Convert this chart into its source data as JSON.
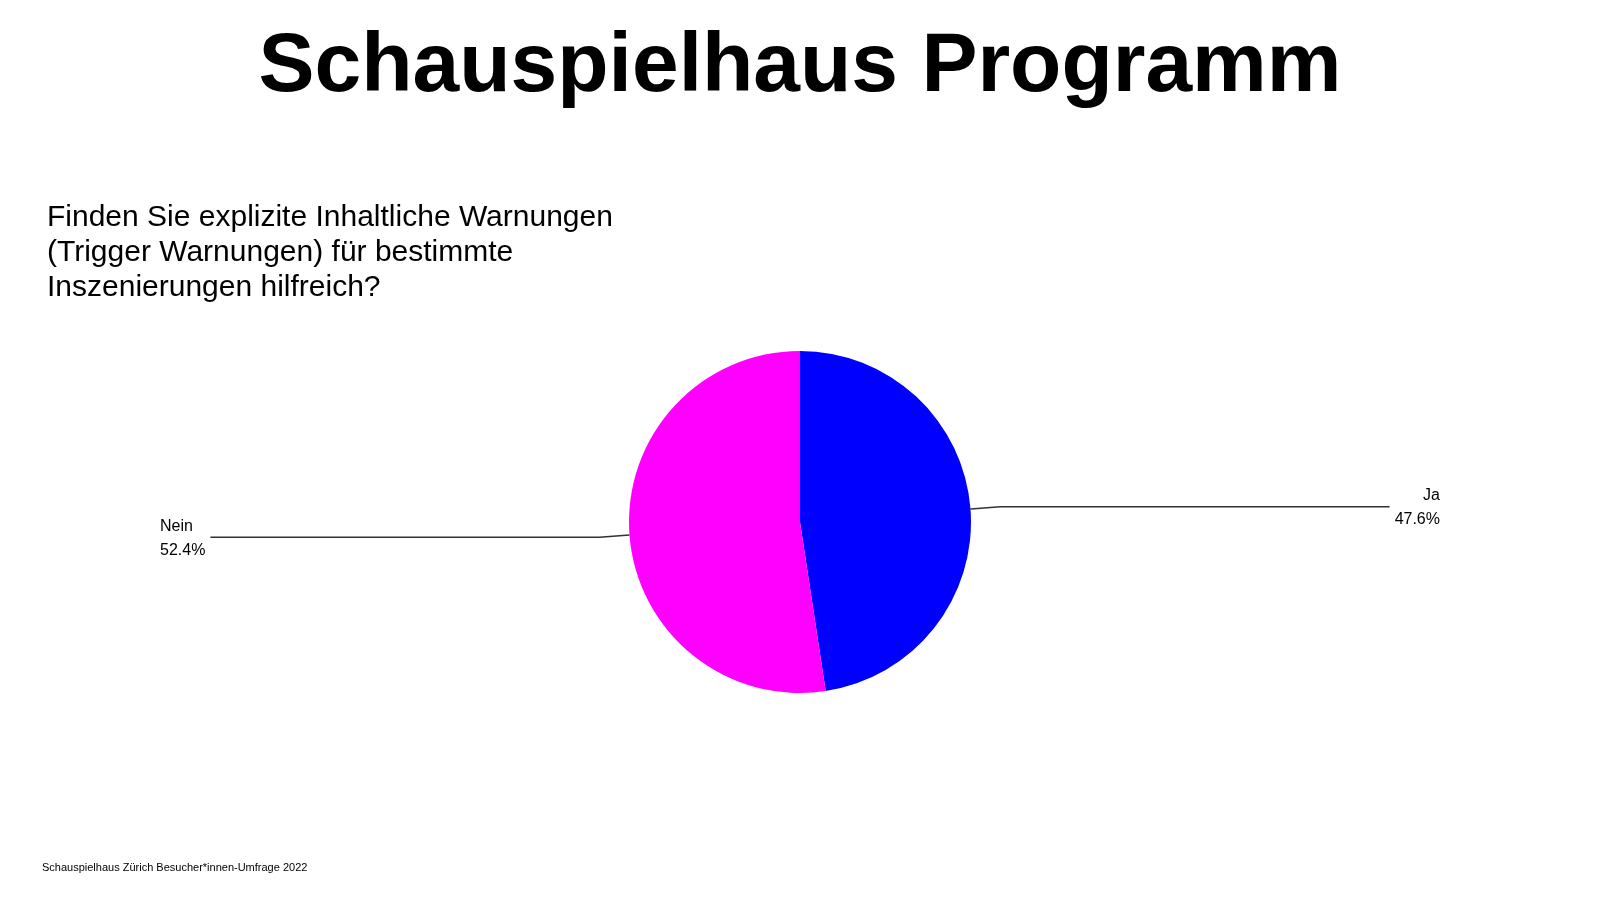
{
  "chart_data": {
    "type": "pie",
    "title": "Schauspielhaus Programm",
    "subtitle": "Finden Sie explizite Inhaltliche Warnungen\n(Trigger Warnungen) für bestimmte\nInszenierungen hilfreich?",
    "categories": [
      "Ja",
      "Nein"
    ],
    "values": [
      47.6,
      52.4
    ],
    "colors": [
      "#0000ff",
      "#ff00ff"
    ],
    "value_labels": [
      "47.6%",
      "52.4%"
    ],
    "legend": false,
    "annotations": [
      "Schauspielhaus Zürich Besucher*innen-Umfrage 2022"
    ]
  }
}
